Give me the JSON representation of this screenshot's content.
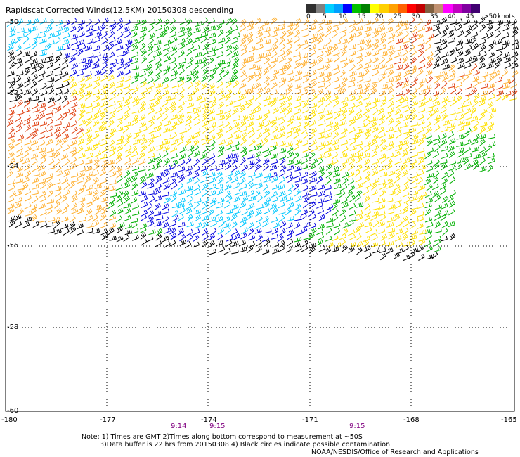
{
  "title": "Rapidscat Corrected Winds(12.5KM) 20150308 descending",
  "legend": {
    "unit": "knots",
    "labels": [
      "0",
      "5",
      "10",
      "15",
      "20",
      "25",
      "30",
      "35",
      "40",
      "45",
      ">50"
    ],
    "colors": [
      "#303030",
      "#808080",
      "#00d0ff",
      "#00a0ff",
      "#0000ff",
      "#00c000",
      "#008000",
      "#ffff00",
      "#ffd000",
      "#ffa000",
      "#ff6000",
      "#ff0000",
      "#c00000",
      "#806040",
      "#c09070",
      "#ff00ff",
      "#c000c0",
      "#8000a0",
      "#400070"
    ]
  },
  "axes": {
    "x_ticks": [
      "-180",
      "-177",
      "-174",
      "-171",
      "-168",
      "-165"
    ],
    "y_ticks": [
      "-50",
      "-52",
      "-54",
      "-56",
      "-58",
      "-60"
    ]
  },
  "times": [
    "9:14",
    "9:15",
    "9:15"
  ],
  "notes": [
    "Note: 1) Times are GMT 2)Times along bottom correspond to measurement at ~50S",
    "3)Data buffer is 22 hrs from 20150308 4) Black circles indicate possible contamination",
    "NOAA/NESDIS/Office of Research and Applications"
  ],
  "wind_colors": {
    "black": "#000000",
    "cyan": "#00c8ff",
    "blue": "#0000e0",
    "green": "#00b000",
    "yellow": "#ffe000",
    "orange": "#ffb030",
    "red": "#e04010"
  }
}
